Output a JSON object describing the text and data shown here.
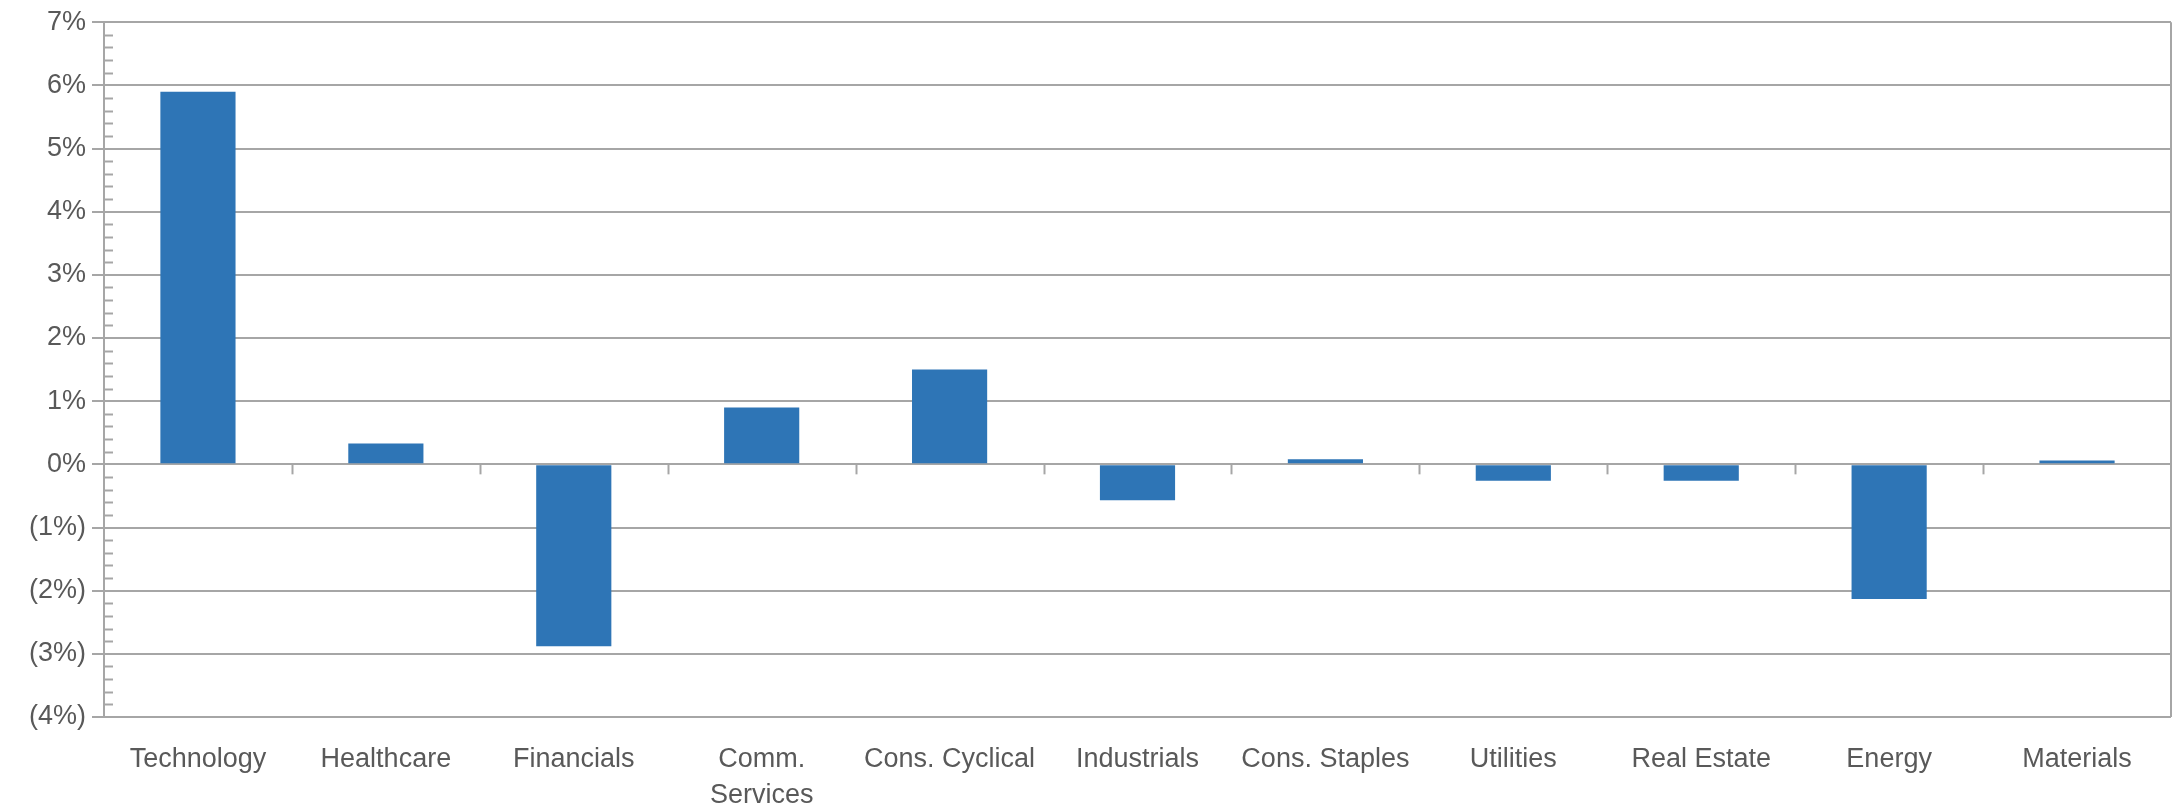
{
  "chart_data": {
    "type": "bar",
    "categories": [
      "Technology",
      "Healthcare",
      "Financials",
      "Comm. Services",
      "Cons. Cyclical",
      "Industrials",
      "Cons. Staples",
      "Utilities",
      "Real Estate",
      "Energy",
      "Materials"
    ],
    "values": [
      5.9,
      0.33,
      -2.88,
      0.9,
      1.5,
      -0.57,
      0.08,
      -0.26,
      -0.26,
      -2.13,
      0.06
    ],
    "color": "#2e75b6",
    "ylim": [
      -4,
      7
    ],
    "yticks": [
      {
        "value": -4,
        "label": "(4%)"
      },
      {
        "value": -3.8,
        "label": null
      },
      {
        "value": -3.6,
        "label": null
      },
      {
        "value": -3.4,
        "label": null
      },
      {
        "value": -3.2,
        "label": null
      },
      {
        "value": -3,
        "label": "(3%)"
      },
      {
        "value": -2.8,
        "label": null
      },
      {
        "value": -2.6,
        "label": null
      },
      {
        "value": -2.4,
        "label": null
      },
      {
        "value": -2.2,
        "label": null
      },
      {
        "value": -2,
        "label": "(2%)"
      },
      {
        "value": -1.8,
        "label": null
      },
      {
        "value": -1.6,
        "label": null
      },
      {
        "value": -1.4,
        "label": null
      },
      {
        "value": -1.2,
        "label": null
      },
      {
        "value": -1,
        "label": "(1%)"
      },
      {
        "value": -0.8,
        "label": null
      },
      {
        "value": -0.6,
        "label": null
      },
      {
        "value": -0.4,
        "label": null
      },
      {
        "value": -0.2,
        "label": null
      },
      {
        "value": 0,
        "label": "0%"
      },
      {
        "value": 0.2,
        "label": null
      },
      {
        "value": 0.4,
        "label": null
      },
      {
        "value": 0.6,
        "label": null
      },
      {
        "value": 0.8,
        "label": null
      },
      {
        "value": 1,
        "label": "1%"
      },
      {
        "value": 1.2,
        "label": null
      },
      {
        "value": 1.4,
        "label": null
      },
      {
        "value": 1.6,
        "label": null
      },
      {
        "value": 1.8,
        "label": null
      },
      {
        "value": 2,
        "label": "2%"
      },
      {
        "value": 2.2,
        "label": null
      },
      {
        "value": 2.4,
        "label": null
      },
      {
        "value": 2.6,
        "label": null
      },
      {
        "value": 2.8,
        "label": null
      },
      {
        "value": 3,
        "label": "3%"
      },
      {
        "value": 3.2,
        "label": null
      },
      {
        "value": 3.4,
        "label": null
      },
      {
        "value": 3.6,
        "label": null
      },
      {
        "value": 3.8,
        "label": null
      },
      {
        "value": 4,
        "label": "4%"
      },
      {
        "value": 4.2,
        "label": null
      },
      {
        "value": 4.4,
        "label": null
      },
      {
        "value": 4.6,
        "label": null
      },
      {
        "value": 4.8,
        "label": null
      },
      {
        "value": 5,
        "label": "5%"
      },
      {
        "value": 5.2,
        "label": null
      },
      {
        "value": 5.4,
        "label": null
      },
      {
        "value": 5.6,
        "label": null
      },
      {
        "value": 5.8,
        "label": null
      },
      {
        "value": 6,
        "label": "6%"
      },
      {
        "value": 6.2,
        "label": null
      },
      {
        "value": 6.4,
        "label": null
      },
      {
        "value": 6.6,
        "label": null
      },
      {
        "value": 6.8,
        "label": null
      },
      {
        "value": 7,
        "label": "7%"
      }
    ],
    "grid": "y"
  }
}
